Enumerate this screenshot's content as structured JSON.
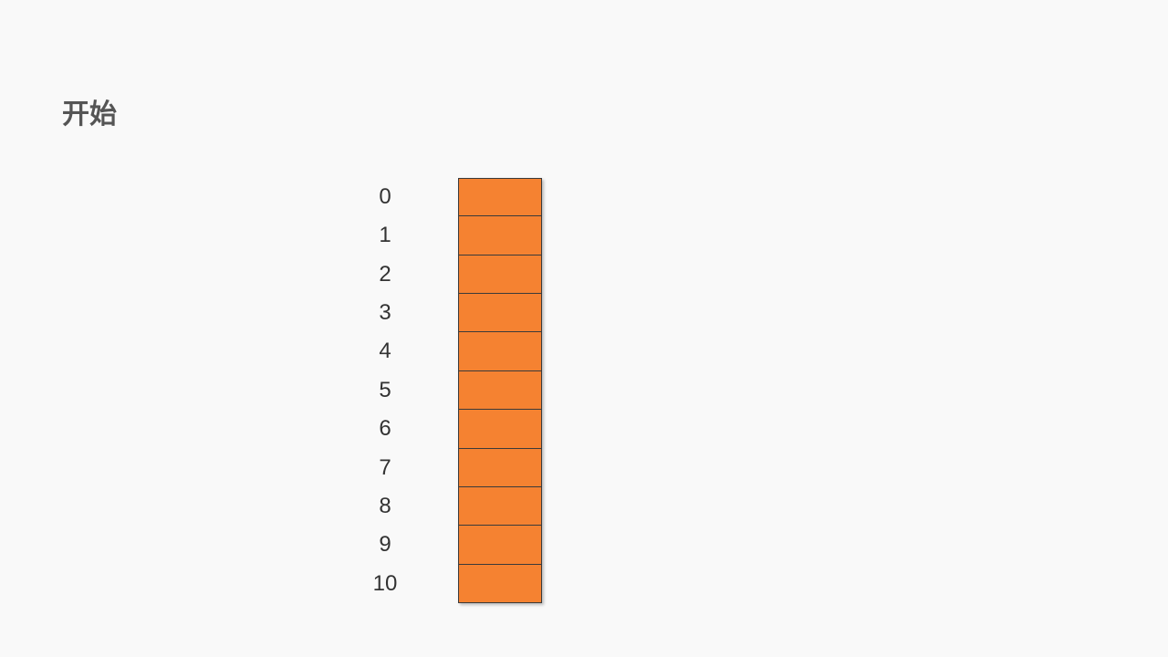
{
  "title": "开始",
  "colors": {
    "background": "#f9f9f9",
    "cell_fill": "#f58231",
    "cell_border": "#3a3a3a",
    "title_text": "#555555",
    "index_text": "#333333"
  },
  "array": {
    "indices": [
      "0",
      "1",
      "2",
      "3",
      "4",
      "5",
      "6",
      "7",
      "8",
      "9",
      "10"
    ]
  }
}
